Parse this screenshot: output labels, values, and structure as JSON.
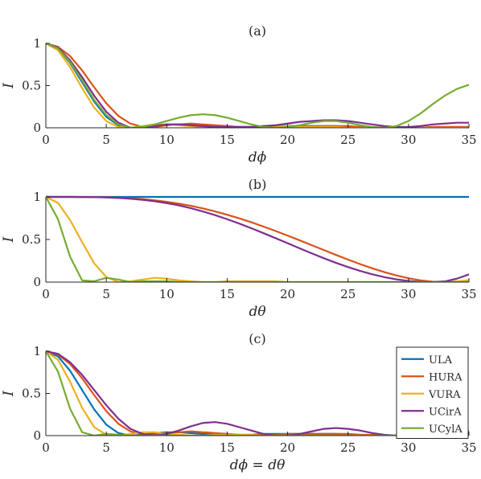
{
  "series_colors": {
    "ULA": "#0072BD",
    "HURA": "#D95319",
    "VURA": "#EDB120",
    "UCirA": "#7E2F8E",
    "UCylA": "#77AC30"
  },
  "chart_data": [
    {
      "type": "line",
      "title": "(a)",
      "xlabel": "dϕ",
      "ylabel": "I",
      "xlim": [
        0,
        35
      ],
      "ylim": [
        0,
        1
      ],
      "xticks": [
        "0",
        "5",
        "10",
        "15",
        "20",
        "25",
        "30",
        "35"
      ],
      "yticks": [
        "0",
        "0.5",
        "1"
      ],
      "grid": false,
      "x": [
        0,
        1,
        2,
        3,
        4,
        5,
        6,
        7,
        8,
        9,
        10,
        11,
        12,
        13,
        14,
        15,
        16,
        17,
        18,
        19,
        20,
        21,
        22,
        23,
        24,
        25,
        26,
        27,
        28,
        29,
        30,
        31,
        32,
        33,
        34,
        35
      ],
      "series": [
        {
          "name": "ULA",
          "values": [
            1,
            0.94,
            0.77,
            0.54,
            0.31,
            0.13,
            0.03,
            0.0,
            0.01,
            0.03,
            0.04,
            0.04,
            0.03,
            0.02,
            0.01,
            0.01,
            0.01,
            0.01,
            0.02,
            0.02,
            0.02,
            0.02,
            0.02,
            0.02,
            0.02,
            0.01,
            0.01,
            0.0,
            0.0,
            0.0,
            0.0,
            0.0,
            0.01,
            0.01,
            0.01,
            0.01
          ]
        },
        {
          "name": "HURA",
          "values": [
            1,
            0.96,
            0.85,
            0.68,
            0.48,
            0.29,
            0.14,
            0.05,
            0.01,
            0.01,
            0.03,
            0.04,
            0.05,
            0.04,
            0.03,
            0.02,
            0.01,
            0.01,
            0.01,
            0.01,
            0.02,
            0.02,
            0.02,
            0.02,
            0.02,
            0.02,
            0.01,
            0.01,
            0.0,
            0.0,
            0.0,
            0.0,
            0.01,
            0.01,
            0.01,
            0.01
          ]
        },
        {
          "name": "VURA",
          "values": [
            1,
            0.92,
            0.72,
            0.47,
            0.24,
            0.08,
            0.01,
            0.0,
            0.02,
            0.04,
            0.04,
            0.03,
            0.02,
            0.01,
            0.0,
            0.0,
            0.01,
            0.01,
            0.02,
            0.02,
            0.02,
            0.01,
            0.01,
            0.01,
            0.01,
            0.0,
            0.0,
            0.0,
            0.0,
            0.0,
            0.0,
            0.0,
            0.0,
            0.0,
            0.0,
            0.0
          ]
        },
        {
          "name": "UCirA",
          "values": [
            1,
            0.95,
            0.8,
            0.6,
            0.38,
            0.19,
            0.06,
            0.0,
            0.0,
            0.02,
            0.04,
            0.04,
            0.03,
            0.02,
            0.01,
            0.01,
            0.01,
            0.01,
            0.02,
            0.03,
            0.05,
            0.07,
            0.08,
            0.09,
            0.09,
            0.08,
            0.06,
            0.04,
            0.02,
            0.01,
            0.01,
            0.02,
            0.04,
            0.05,
            0.06,
            0.06
          ]
        },
        {
          "name": "UCylA",
          "values": [
            1,
            0.94,
            0.78,
            0.56,
            0.33,
            0.15,
            0.04,
            0.0,
            0.01,
            0.04,
            0.08,
            0.12,
            0.15,
            0.16,
            0.15,
            0.12,
            0.08,
            0.04,
            0.01,
            0.0,
            0.01,
            0.03,
            0.06,
            0.08,
            0.08,
            0.06,
            0.03,
            0.01,
            0.0,
            0.02,
            0.08,
            0.17,
            0.28,
            0.38,
            0.46,
            0.51
          ]
        }
      ]
    },
    {
      "type": "line",
      "title": "(b)",
      "xlabel": "dθ",
      "ylabel": "I",
      "xlim": [
        0,
        35
      ],
      "ylim": [
        0,
        1
      ],
      "xticks": [
        "0",
        "5",
        "10",
        "15",
        "20",
        "25",
        "30",
        "35"
      ],
      "yticks": [
        "0",
        "0.5",
        "1"
      ],
      "grid": false,
      "x": [
        0,
        1,
        2,
        3,
        4,
        5,
        6,
        7,
        8,
        9,
        10,
        11,
        12,
        13,
        14,
        15,
        16,
        17,
        18,
        19,
        20,
        21,
        22,
        23,
        24,
        25,
        26,
        27,
        28,
        29,
        30,
        31,
        32,
        33,
        34,
        35
      ],
      "series": [
        {
          "name": "ULA",
          "values": [
            1,
            1,
            1,
            1,
            1,
            1,
            1,
            1,
            1,
            1,
            1,
            1,
            1,
            1,
            1,
            1,
            1,
            1,
            1,
            1,
            1,
            1,
            1,
            1,
            1,
            1,
            1,
            1,
            1,
            1,
            1,
            1,
            1,
            1,
            1,
            1
          ]
        },
        {
          "name": "HURA",
          "values": [
            1,
            1.0,
            1.0,
            0.999,
            0.998,
            0.995,
            0.99,
            0.984,
            0.974,
            0.96,
            0.943,
            0.921,
            0.895,
            0.865,
            0.83,
            0.791,
            0.748,
            0.702,
            0.652,
            0.6,
            0.546,
            0.49,
            0.433,
            0.376,
            0.319,
            0.264,
            0.211,
            0.162,
            0.117,
            0.078,
            0.045,
            0.02,
            0.005,
            0.0,
            0.005,
            0.02
          ]
        },
        {
          "name": "VURA",
          "values": [
            1,
            0.93,
            0.73,
            0.47,
            0.22,
            0.06,
            0.0,
            0.01,
            0.03,
            0.05,
            0.04,
            0.02,
            0.01,
            0.0,
            0.0,
            0.01,
            0.01,
            0.01,
            0.01,
            0.01,
            0.0,
            0.0,
            0.0,
            0.0,
            0.0,
            0.0,
            0.0,
            0.0,
            0.0,
            0.0,
            0.0,
            0.0,
            0.0,
            0.0,
            0.01,
            0.02
          ]
        },
        {
          "name": "UCirA",
          "values": [
            1,
            1.0,
            1.0,
            0.999,
            0.997,
            0.994,
            0.988,
            0.979,
            0.966,
            0.949,
            0.927,
            0.9,
            0.867,
            0.829,
            0.786,
            0.738,
            0.687,
            0.632,
            0.575,
            0.516,
            0.456,
            0.396,
            0.337,
            0.28,
            0.226,
            0.176,
            0.131,
            0.091,
            0.058,
            0.032,
            0.013,
            0.003,
            0.001,
            0.008,
            0.04,
            0.09
          ]
        },
        {
          "name": "UCylA",
          "values": [
            1,
            0.74,
            0.3,
            0.02,
            0.01,
            0.05,
            0.03,
            0.0,
            0.01,
            0.01,
            0.01,
            0.0,
            0.0,
            0.0,
            0.0,
            0.0,
            0.0,
            0.0,
            0.0,
            0.0,
            0.0,
            0.0,
            0.0,
            0.0,
            0.0,
            0.0,
            0.0,
            0.0,
            0.0,
            0.0,
            0.0,
            0.0,
            0.0,
            0.0,
            0.0,
            0.0
          ]
        }
      ]
    },
    {
      "type": "line",
      "title": "(c)",
      "xlabel": "dϕ = dθ",
      "ylabel": "I",
      "xlim": [
        0,
        35
      ],
      "ylim": [
        0,
        1
      ],
      "xticks": [
        "0",
        "5",
        "10",
        "15",
        "20",
        "25",
        "30",
        "35"
      ],
      "yticks": [
        "0",
        "0.5",
        "1"
      ],
      "grid": false,
      "legend": "top-right",
      "x": [
        0,
        1,
        2,
        3,
        4,
        5,
        6,
        7,
        8,
        9,
        10,
        11,
        12,
        13,
        14,
        15,
        16,
        17,
        18,
        19,
        20,
        21,
        22,
        23,
        24,
        25,
        26,
        27,
        28,
        29,
        30,
        31,
        32,
        33,
        34,
        35
      ],
      "series": [
        {
          "name": "ULA",
          "values": [
            1,
            0.94,
            0.77,
            0.54,
            0.31,
            0.13,
            0.03,
            0.0,
            0.01,
            0.03,
            0.04,
            0.04,
            0.03,
            0.02,
            0.01,
            0.01,
            0.01,
            0.01,
            0.02,
            0.02,
            0.02,
            0.02,
            0.02,
            0.02,
            0.02,
            0.01,
            0.01,
            0.0,
            0.0,
            0.0,
            0.0,
            0.0,
            0.01,
            0.01,
            0.01,
            0.01
          ]
        },
        {
          "name": "HURA",
          "values": [
            1,
            0.96,
            0.85,
            0.68,
            0.48,
            0.29,
            0.14,
            0.05,
            0.01,
            0.01,
            0.03,
            0.04,
            0.05,
            0.04,
            0.03,
            0.02,
            0.01,
            0.01,
            0.01,
            0.01,
            0.02,
            0.02,
            0.02,
            0.02,
            0.02,
            0.02,
            0.01,
            0.01,
            0.0,
            0.0,
            0.0,
            0.0,
            0.01,
            0.01,
            0.01,
            0.01
          ]
        },
        {
          "name": "VURA",
          "values": [
            1,
            0.9,
            0.64,
            0.33,
            0.1,
            0.01,
            0.0,
            0.02,
            0.04,
            0.04,
            0.02,
            0.01,
            0.0,
            0.0,
            0.01,
            0.01,
            0.01,
            0.01,
            0.0,
            0.0,
            0.0,
            0.0,
            0.0,
            0.0,
            0.0,
            0.0,
            0.0,
            0.0,
            0.0,
            0.0,
            0.0,
            0.0,
            0.0,
            0.0,
            0.0,
            0.0
          ]
        },
        {
          "name": "UCirA",
          "values": [
            1,
            0.97,
            0.87,
            0.72,
            0.54,
            0.36,
            0.2,
            0.08,
            0.02,
            0.0,
            0.02,
            0.06,
            0.11,
            0.15,
            0.16,
            0.14,
            0.1,
            0.06,
            0.02,
            0.0,
            0.0,
            0.02,
            0.05,
            0.08,
            0.09,
            0.08,
            0.06,
            0.03,
            0.01,
            0.0,
            0.0,
            0.01,
            0.02,
            0.04,
            0.05,
            0.05
          ]
        },
        {
          "name": "UCylA",
          "values": [
            1,
            0.76,
            0.32,
            0.04,
            0.0,
            0.02,
            0.01,
            0.0,
            0.0,
            0.0,
            0.0,
            0.0,
            0.0,
            0.0,
            0.0,
            0.0,
            0.0,
            0.0,
            0.0,
            0.0,
            0.0,
            0.0,
            0.0,
            0.0,
            0.0,
            0.0,
            0.0,
            0.0,
            0.0,
            0.0,
            0.0,
            0.0,
            0.0,
            0.0,
            0.0,
            0.0
          ]
        }
      ]
    }
  ]
}
